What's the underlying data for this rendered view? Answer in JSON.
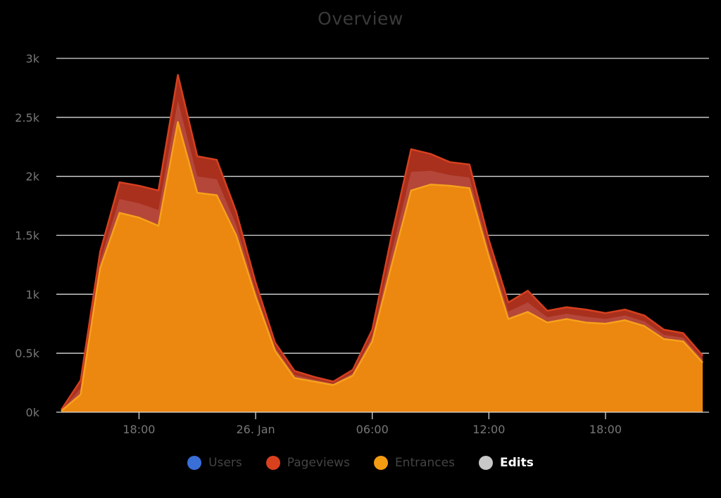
{
  "chart_data": {
    "type": "area",
    "title": "Overview",
    "xlabel": "",
    "ylabel": "",
    "ylim": [
      0,
      3000
    ],
    "y_ticks": [
      "0k",
      "0.5k",
      "1k",
      "1.5k",
      "2k",
      "2.5k",
      "3k"
    ],
    "y_tick_values": [
      0,
      500,
      1000,
      1500,
      2000,
      2500,
      3000
    ],
    "x_ticks": [
      "18:00",
      "26. Jan",
      "06:00",
      "12:00",
      "18:00"
    ],
    "x_tick_hours": [
      18,
      24,
      30,
      36,
      42
    ],
    "x_hours": [
      14,
      15,
      16,
      17,
      18,
      19,
      20,
      21,
      22,
      23,
      24,
      25,
      26,
      27,
      28,
      29,
      30,
      31,
      32,
      33,
      34,
      35,
      36,
      37,
      38,
      39,
      40,
      41,
      42,
      43,
      44,
      45,
      46,
      47
    ],
    "grid": true,
    "stacked": false,
    "legend_position": "bottom-center",
    "series": [
      {
        "name": "Pageviews",
        "color": "#c0392b",
        "values": [
          20,
          270,
          1360,
          1950,
          1920,
          1880,
          2860,
          2170,
          2140,
          1700,
          1100,
          590,
          350,
          300,
          260,
          360,
          700,
          1500,
          2230,
          2190,
          2120,
          2100,
          1460,
          930,
          1030,
          860,
          890,
          870,
          840,
          870,
          820,
          700,
          670,
          480
        ]
      },
      {
        "name": "Entrances",
        "color": "#f39c12",
        "values": [
          10,
          150,
          1220,
          1690,
          1650,
          1580,
          2460,
          1860,
          1840,
          1500,
          980,
          520,
          290,
          260,
          230,
          310,
          600,
          1250,
          1880,
          1930,
          1920,
          1900,
          1320,
          790,
          850,
          760,
          790,
          760,
          750,
          780,
          730,
          620,
          600,
          420
        ]
      }
    ],
    "legend": [
      {
        "name": "Users",
        "color": "#3a6fd8",
        "active": false
      },
      {
        "name": "Pageviews",
        "color": "#d9411e",
        "active": false
      },
      {
        "name": "Entrances",
        "color": "#f39c12",
        "active": false
      },
      {
        "name": "Edits",
        "color": "#c8c8c8",
        "active": true
      }
    ]
  }
}
